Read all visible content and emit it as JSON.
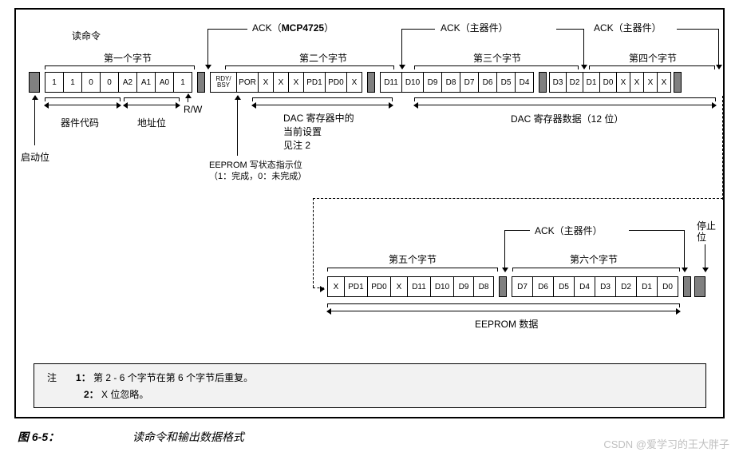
{
  "colors": {
    "cell_bg": "#ffffff",
    "dark": "#808080",
    "border": "#000000",
    "note_bg": "#f2f2f2"
  },
  "top_labels": {
    "read_cmd": "读命令",
    "byte1": "第一个字节",
    "byte2": "第二个字节",
    "byte3": "第三个字节",
    "byte4": "第四个字节",
    "ack_mcp": "ACK（MCP4725）",
    "ack_m1": "ACK（主器件）",
    "ack_m2": "ACK（主器件）"
  },
  "row1": {
    "byte1": [
      "1",
      "1",
      "0",
      "0",
      "A2",
      "A1",
      "A0",
      "1"
    ],
    "rw": "R/W",
    "byte2": [
      "RDY/\nBSY",
      "POR",
      "X",
      "X",
      "X",
      "PD1",
      "PD0",
      "X"
    ],
    "byte3": [
      "D11",
      "D10",
      "D9",
      "D8",
      "D7",
      "D6",
      "D5",
      "D4"
    ],
    "byte4": [
      "D3",
      "D2",
      "D1",
      "D0",
      "X",
      "X",
      "X",
      "X"
    ]
  },
  "under1": {
    "device_code": "器件代码",
    "addr": "地址位",
    "start": "启动位",
    "dac_cur": "DAC 寄存器中的\n当前设置\n见注 2",
    "eeprom_line": "EEPROM 写状态指示位\n（1：完成，0：未完成）",
    "dac_data": "DAC 寄存器数据（12 位）"
  },
  "row2_top": {
    "byte5": "第五个字节",
    "byte6": "第六个字节",
    "ack_m": "ACK（主器件）",
    "stop": "停止\n位"
  },
  "row2": {
    "byte5": [
      "X",
      "PD1",
      "PD0",
      "X",
      "D11",
      "D10",
      "D9",
      "D8"
    ],
    "byte6": [
      "D7",
      "D6",
      "D5",
      "D4",
      "D3",
      "D2",
      "D1",
      "D0"
    ]
  },
  "row2_under": {
    "eeprom_data": "EEPROM 数据"
  },
  "notes": {
    "title": "注",
    "n1": "1：",
    "t1": "第 2 - 6 个字节在第 6 个字节后重复。",
    "n2": "2：",
    "t2": "X 位忽略。"
  },
  "figure": {
    "num": "图 6-5：",
    "title": "读命令和输出数据格式"
  },
  "watermark": "CSDN @爱学习的王大胖子"
}
